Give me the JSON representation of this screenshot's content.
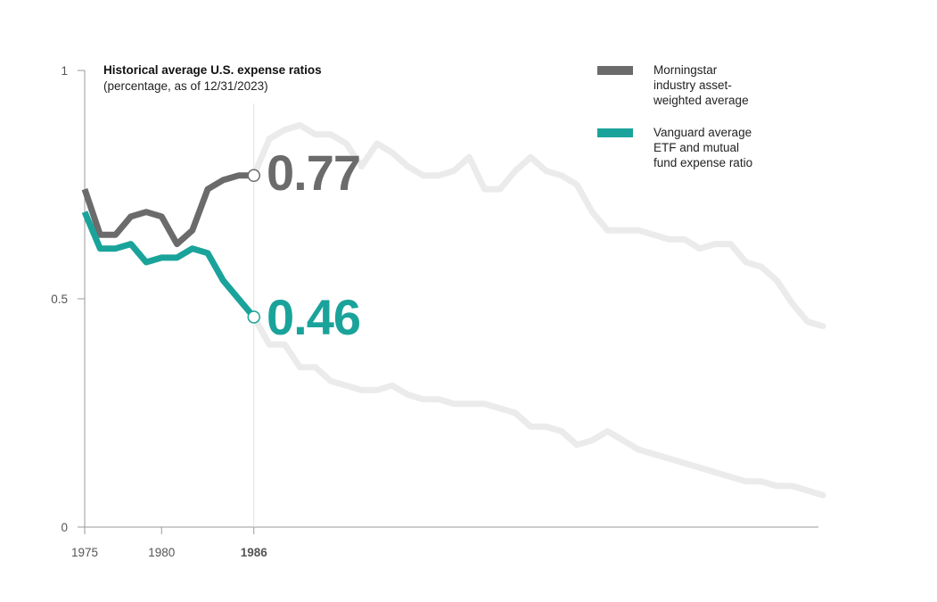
{
  "chart_data": {
    "type": "line",
    "title": "Historical average U.S. expense ratios",
    "subtitle": "(percentage, as of 12/31/2023)",
    "xlabel": "",
    "ylabel": "",
    "xlim": [
      1975,
      2023
    ],
    "ylim": [
      0,
      1
    ],
    "y_ticks": [
      {
        "value": 0,
        "label": "0"
      },
      {
        "value": 0.5,
        "label": "0.5"
      },
      {
        "value": 1,
        "label": "1"
      }
    ],
    "x_ticks": [
      {
        "value": 1975,
        "label": "1975",
        "bold": false
      },
      {
        "value": 1980,
        "label": "1980",
        "bold": false
      },
      {
        "value": 1986,
        "label": "1986",
        "bold": true
      }
    ],
    "highlight_year": 1986,
    "grid": false,
    "legend_position": "top-right",
    "series": [
      {
        "name": "Morningstar industry asset-weighted average",
        "color": "#6b6b6b",
        "x": [
          1975,
          1976,
          1977,
          1978,
          1979,
          1980,
          1981,
          1982,
          1983,
          1984,
          1985,
          1986,
          1987,
          1988,
          1989,
          1990,
          1991,
          1992,
          1993,
          1994,
          1995,
          1996,
          1997,
          1998,
          1999,
          2000,
          2001,
          2002,
          2003,
          2004,
          2005,
          2006,
          2007,
          2008,
          2009,
          2010,
          2011,
          2012,
          2013,
          2014,
          2015,
          2016,
          2017,
          2018,
          2019,
          2020,
          2021,
          2022,
          2023
        ],
        "values": [
          0.74,
          0.64,
          0.64,
          0.68,
          0.69,
          0.68,
          0.62,
          0.65,
          0.74,
          0.76,
          0.77,
          0.77,
          0.85,
          0.87,
          0.88,
          0.86,
          0.86,
          0.84,
          0.79,
          0.84,
          0.82,
          0.79,
          0.77,
          0.77,
          0.78,
          0.81,
          0.74,
          0.74,
          0.78,
          0.81,
          0.78,
          0.77,
          0.75,
          0.69,
          0.65,
          0.65,
          0.65,
          0.64,
          0.63,
          0.63,
          0.61,
          0.62,
          0.62,
          0.58,
          0.57,
          0.54,
          0.49,
          0.45,
          0.44
        ],
        "end_value": 0.77,
        "end_label": "0.77"
      },
      {
        "name": "Vanguard average ETF and mutual fund expense ratio",
        "color": "#1aa39a",
        "x": [
          1975,
          1976,
          1977,
          1978,
          1979,
          1980,
          1981,
          1982,
          1983,
          1984,
          1985,
          1986,
          1987,
          1988,
          1989,
          1990,
          1991,
          1992,
          1993,
          1994,
          1995,
          1996,
          1997,
          1998,
          1999,
          2000,
          2001,
          2002,
          2003,
          2004,
          2005,
          2006,
          2007,
          2008,
          2009,
          2010,
          2011,
          2012,
          2013,
          2014,
          2015,
          2016,
          2017,
          2018,
          2019,
          2020,
          2021,
          2022,
          2023
        ],
        "values": [
          0.69,
          0.61,
          0.61,
          0.62,
          0.58,
          0.59,
          0.59,
          0.61,
          0.6,
          0.54,
          0.5,
          0.46,
          0.4,
          0.4,
          0.35,
          0.35,
          0.32,
          0.31,
          0.3,
          0.3,
          0.31,
          0.29,
          0.28,
          0.28,
          0.27,
          0.27,
          0.27,
          0.26,
          0.25,
          0.22,
          0.22,
          0.21,
          0.18,
          0.19,
          0.21,
          0.19,
          0.17,
          0.16,
          0.15,
          0.14,
          0.13,
          0.12,
          0.11,
          0.1,
          0.1,
          0.09,
          0.09,
          0.08,
          0.07
        ],
        "end_value": 0.46,
        "end_label": "0.46"
      }
    ]
  }
}
